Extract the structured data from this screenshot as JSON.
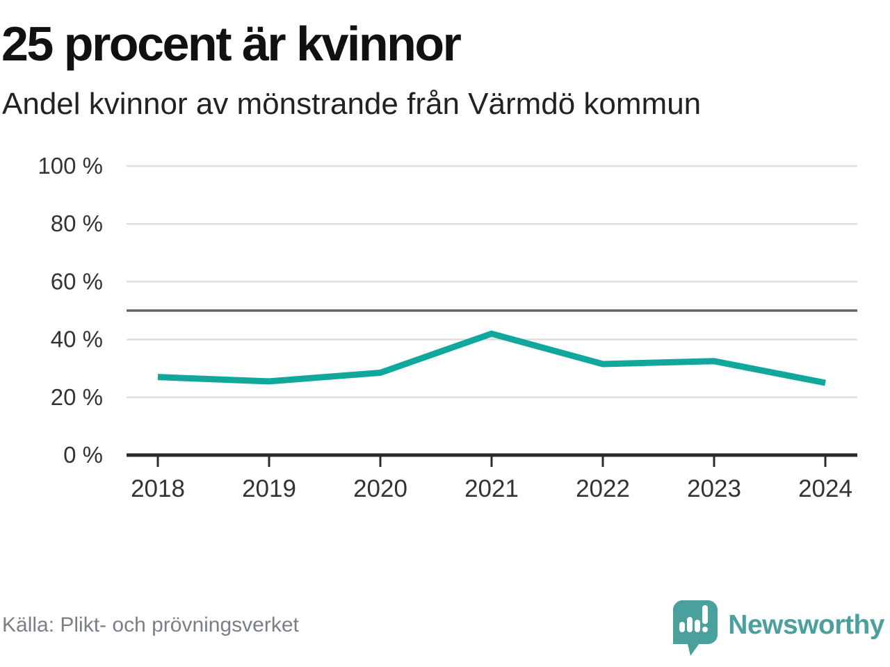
{
  "header": {
    "title": "25 procent är kvinnor",
    "subtitle": "Andel kvinnor av mönstrande från Värmdö kommun"
  },
  "footer": {
    "source": "Källa: Plikt- och prövningsverket",
    "brand": "Newsworthy"
  },
  "colors": {
    "accent": "#10a79d",
    "grid": "#dedede",
    "reference": "#63636c",
    "axis": "#2b2b2b",
    "text": "#333333",
    "title": "#111111",
    "subtitle": "#222222",
    "muted": "#7a7f87",
    "logo": "#4aa09c"
  },
  "chart_data": {
    "type": "line",
    "title": "25 procent är kvinnor",
    "subtitle": "Andel kvinnor av mönstrande från Värmdö kommun",
    "source": "Källa: Plikt- och prövningsverket",
    "categories": [
      "2018",
      "2019",
      "2020",
      "2021",
      "2022",
      "2023",
      "2024"
    ],
    "series": [
      {
        "name": "Andel kvinnor av mönstrande, Värmdö kommun",
        "values": [
          27,
          25.5,
          28.5,
          42,
          31.5,
          32.5,
          25
        ]
      }
    ],
    "unit": "%",
    "ylim": [
      0,
      100
    ],
    "yticks": [
      0,
      20,
      40,
      60,
      80,
      100
    ],
    "ytick_labels": [
      "0 %",
      "20 %",
      "40 %",
      "60 %",
      "80 %",
      "100 %"
    ],
    "reference_line_y": 50,
    "grid": true,
    "legend": false,
    "line_color": "#10a79d"
  }
}
